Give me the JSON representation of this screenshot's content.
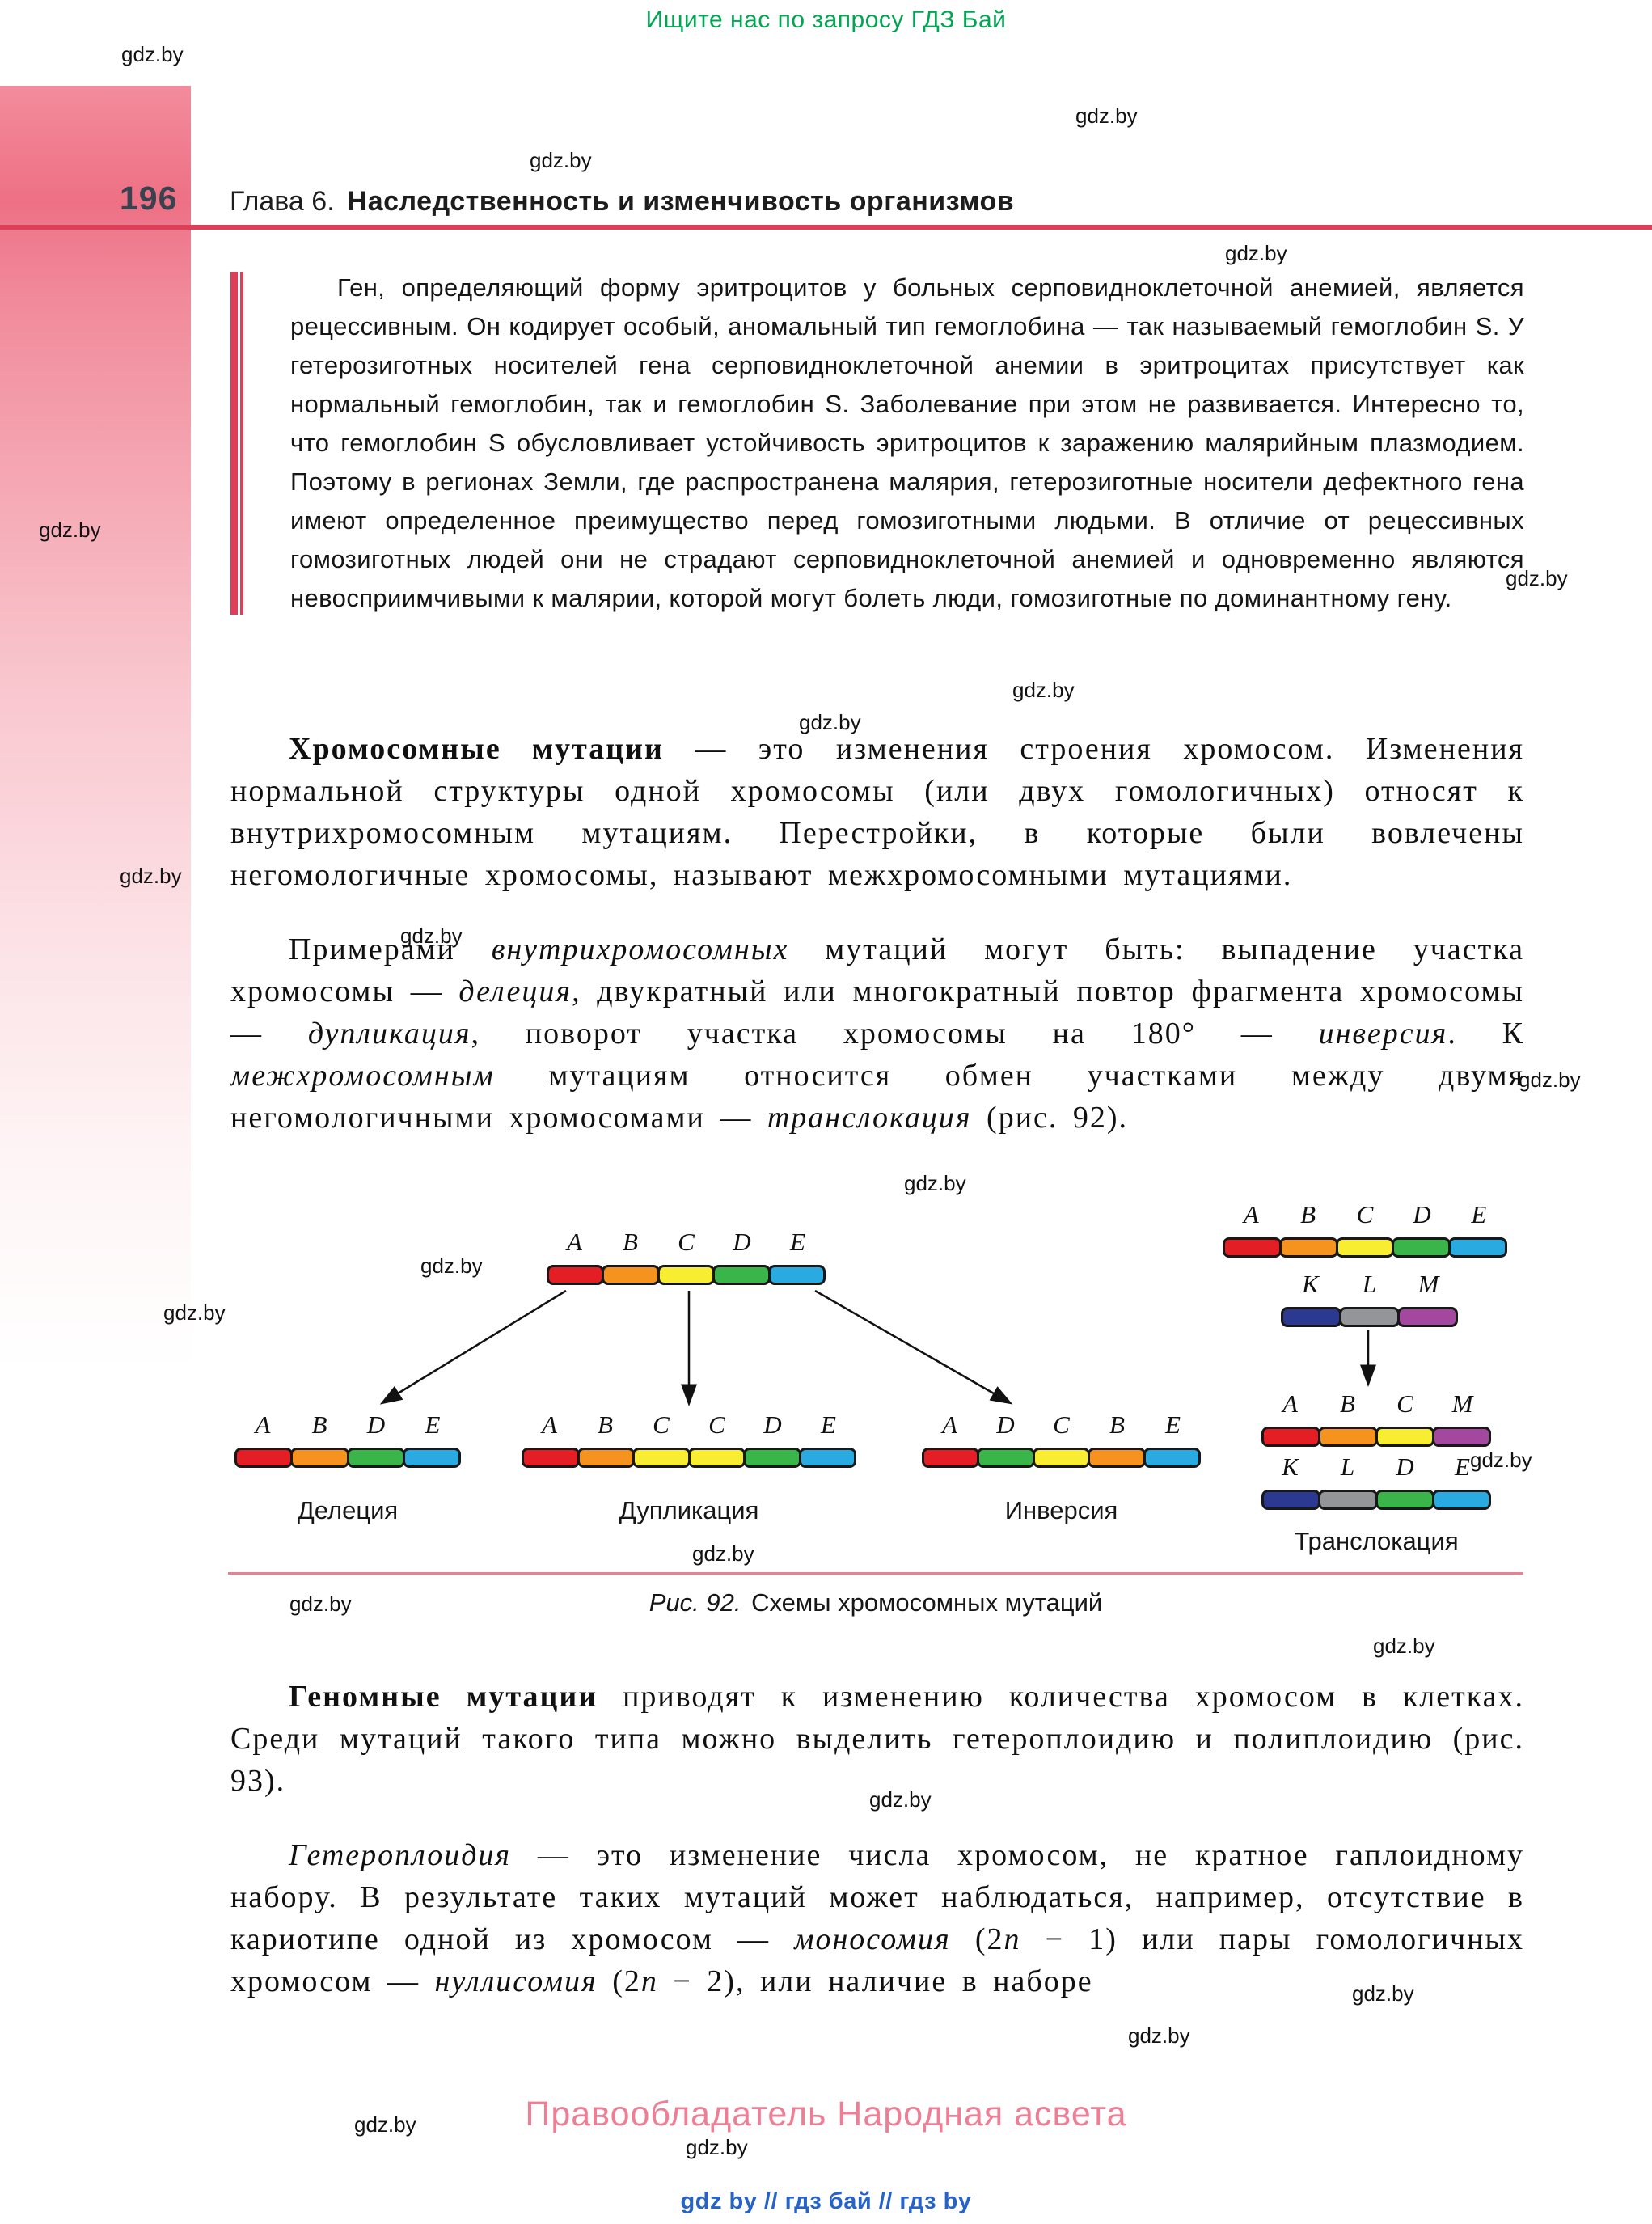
{
  "page": {
    "banner": "Ищите нас по запросу ГДЗ Бай",
    "number": "196",
    "chapter_prefix": "Глава 6.",
    "chapter_title": "Наследственность и изменчивость организмов",
    "watermark": "gdz.by",
    "copyright": "Правообладатель Народная асвета",
    "links": "gdz by // гдз бай // гдз by"
  },
  "text": {
    "inset": "Ген, определяющий форму эритроцитов у больных серповидноклеточной анемией, является рецессивным. Он кодирует особый, аномальный тип гемоглобина — так называемый гемоглобин S. У гетерозиготных носителей гена серповидноклеточной анемии в эритроцитах присутствует как нормальный гемоглобин, так и гемоглобин S. Заболевание при этом не развивается. Интересно то, что гемоглобин S обусловливает устойчивость эритроцитов к заражению малярийным плазмодием. Поэтому в регионах Земли, где распространена малярия, гетерозиготные носители дефектного гена имеют определенное преимущество перед гомозиготными людьми. В отличие от рецессивных гомозиготных людей они не страдают серповидноклеточной анемией и одновременно являются невосприимчивыми к малярии, которой могут болеть люди, гомозиготные по доминантному гену.",
    "p_chromosomal": [
      {
        "t": "Хромосомные мутации",
        "s": "b"
      },
      {
        "t": " — это изменения строения хромосом. Изменения нормальной структуры одной хромосомы (или двух гомологичных) относят к внутрихромосомным мутациям. Перестройки, в которые были вовлечены негомологичные хромосомы, называют межхромосомными мутациями.",
        "s": ""
      }
    ],
    "p_examples": [
      {
        "t": "Примерами ",
        "s": ""
      },
      {
        "t": "внутрихромосомных",
        "s": "i"
      },
      {
        "t": " мутаций могут быть: выпадение участка хромосомы — ",
        "s": ""
      },
      {
        "t": "делеция",
        "s": "i"
      },
      {
        "t": ", двукратный или многократный повтор фрагмента хромосомы — ",
        "s": ""
      },
      {
        "t": "дупликация",
        "s": "i"
      },
      {
        "t": ", поворот участка хромосомы на 180° — ",
        "s": ""
      },
      {
        "t": "инверсия",
        "s": "i"
      },
      {
        "t": ". К ",
        "s": ""
      },
      {
        "t": "межхромосомным",
        "s": "i"
      },
      {
        "t": " мутациям относится обмен участками между двумя негомологичными хромосомами — ",
        "s": ""
      },
      {
        "t": "транслокация",
        "s": "i"
      },
      {
        "t": " (рис. 92).",
        "s": ""
      }
    ],
    "p_genomic": [
      {
        "t": "Геномные мутации",
        "s": "b"
      },
      {
        "t": " приводят к изменению количества хромосом в клетках. Среди мутаций такого типа можно выделить гетероплоидию и полиплоидию (рис. 93).",
        "s": ""
      }
    ],
    "p_heteroploidy": [
      {
        "t": "Гетероплоидия",
        "s": "i"
      },
      {
        "t": " — это изменение числа хромосом, не кратное гаплоидному набору. В результате таких мутаций может наблюдаться, например, отсутствие в кариотипе одной из хромосом — ",
        "s": ""
      },
      {
        "t": "моносомия",
        "s": "i"
      },
      {
        "t": " (2",
        "s": ""
      },
      {
        "t": "n",
        "s": "i"
      },
      {
        "t": " − 1) или пары гомологичных хромосом — ",
        "s": ""
      },
      {
        "t": "нуллисомия",
        "s": "i"
      },
      {
        "t": " (2",
        "s": ""
      },
      {
        "t": "n",
        "s": "i"
      },
      {
        "t": " − 2), или наличие в наборе",
        "s": ""
      }
    ]
  },
  "figure": {
    "palette": {
      "red": "#e31e24",
      "orange": "#f6921e",
      "yellow": "#f9ed32",
      "green": "#39b54a",
      "cyan": "#29abe2",
      "navy": "#2b3990",
      "gray": "#939598",
      "purple": "#a3479f"
    },
    "chromosomes": {
      "source": {
        "labels": [
          "A",
          "B",
          "C",
          "D",
          "E"
        ],
        "colors": [
          "red",
          "orange",
          "yellow",
          "green",
          "cyan"
        ]
      },
      "pair_top": {
        "labels": [
          "A",
          "B",
          "C",
          "D",
          "E"
        ],
        "colors": [
          "red",
          "orange",
          "yellow",
          "green",
          "cyan"
        ]
      },
      "pair_bottom": {
        "labels": [
          "K",
          "L",
          "M"
        ],
        "colors": [
          "navy",
          "gray",
          "purple"
        ]
      },
      "deletion": {
        "labels": [
          "A",
          "B",
          "D",
          "E"
        ],
        "colors": [
          "red",
          "orange",
          "green",
          "cyan"
        ]
      },
      "duplication": {
        "labels": [
          "A",
          "B",
          "C",
          "C",
          "D",
          "E"
        ],
        "colors": [
          "red",
          "orange",
          "yellow",
          "yellow",
          "green",
          "cyan"
        ]
      },
      "inversion": {
        "labels": [
          "A",
          "D",
          "C",
          "B",
          "E"
        ],
        "colors": [
          "red",
          "green",
          "yellow",
          "orange",
          "cyan"
        ]
      },
      "transloc_top": {
        "labels": [
          "A",
          "B",
          "C",
          "M"
        ],
        "colors": [
          "red",
          "orange",
          "yellow",
          "purple"
        ]
      },
      "transloc_bottom": {
        "labels": [
          "K",
          "L",
          "D",
          "E"
        ],
        "colors": [
          "navy",
          "gray",
          "green",
          "cyan"
        ]
      }
    },
    "labels": {
      "deletion": "Делеция",
      "duplication": "Дупликация",
      "inversion": "Инверсия",
      "translocation": "Транслокация"
    },
    "caption": [
      {
        "t": "Рис. 92.",
        "s": "i"
      },
      {
        "t": " Схемы хромосомных мутаций",
        "s": ""
      }
    ]
  }
}
